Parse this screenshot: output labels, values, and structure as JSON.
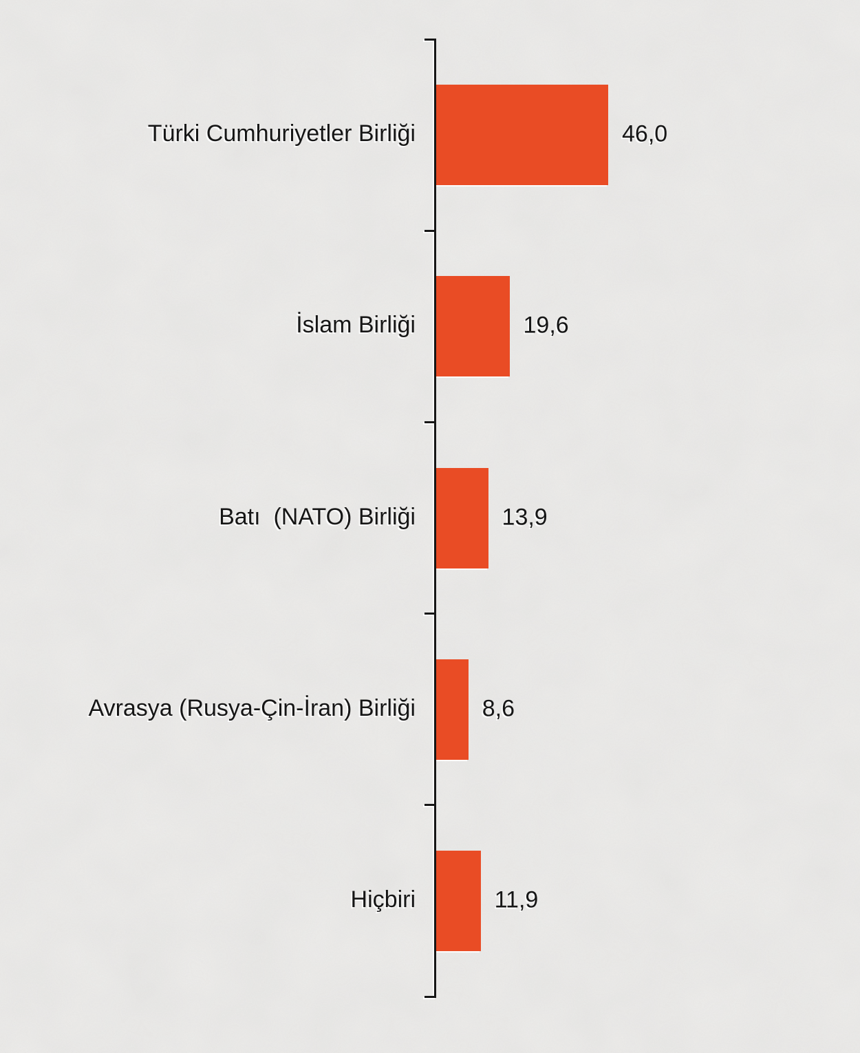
{
  "page": {
    "background_color": "#F1F0EE",
    "text_color": "#161616"
  },
  "chart_data": {
    "type": "bar",
    "orientation": "horizontal",
    "categories": [
      "Türki Cumhuriyetler Birliği",
      "İslam Birliği",
      "Batı  (NATO) Birliği",
      "Avrasya (Rusya-Çin-İran) Birliği",
      "Hiçbiri"
    ],
    "values": [
      46.0,
      19.6,
      13.9,
      8.6,
      11.9
    ],
    "value_labels": [
      "46,0",
      "19,6",
      "13,9",
      "8,6",
      "11,9"
    ],
    "xlabel": "",
    "ylabel": "",
    "xlim": [
      0,
      50
    ],
    "grid": false,
    "legend": false,
    "decimal_separator": ",",
    "bar_color": "#E94C25",
    "axis_color": "#161616",
    "label_color": "#161616"
  }
}
